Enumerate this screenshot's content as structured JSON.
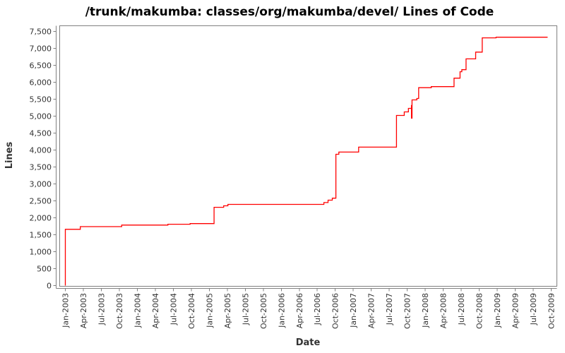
{
  "chart_data": {
    "type": "line",
    "line_style": "step-after",
    "title": "/trunk/makumba: classes/org/makumba/devel/ Lines of Code",
    "xlabel": "Date",
    "ylabel": "Lines",
    "line_color": "#ff0000",
    "frame_color": "#808080",
    "tick_text_color": "#333333",
    "ylim": [
      0,
      7500
    ],
    "y_tick_step": 500,
    "grid": false,
    "legend": false,
    "x_axis_start": "Jan-2003",
    "x_axis_end": "Oct-2009",
    "x_tick_labels": [
      "Jan-2003",
      "Apr-2003",
      "Jul-2003",
      "Oct-2003",
      "Jan-2004",
      "Apr-2004",
      "Jul-2004",
      "Oct-2004",
      "Jan-2005",
      "Apr-2005",
      "Jul-2005",
      "Oct-2005",
      "Jan-2006",
      "Apr-2006",
      "Jul-2006",
      "Oct-2006",
      "Jan-2007",
      "Apr-2007",
      "Jul-2007",
      "Oct-2007",
      "Jan-2008",
      "Apr-2008",
      "Jul-2008",
      "Oct-2008",
      "Jan-2009",
      "Apr-2009",
      "Jul-2009",
      "Oct-2009"
    ],
    "y_tick_labels": [
      "0",
      "500",
      "1,000",
      "1,500",
      "2,000",
      "2,500",
      "3,000",
      "3,500",
      "4,000",
      "4,500",
      "5,000",
      "5,500",
      "6,000",
      "6,500",
      "7,000",
      "7,500"
    ],
    "points_format": [
      "year",
      "month_decimal",
      "lines"
    ],
    "points": [
      [
        2003,
        1.0,
        0
      ],
      [
        2003,
        1.0,
        1660
      ],
      [
        2003,
        3.5,
        1740
      ],
      [
        2003,
        10.4,
        1785
      ],
      [
        2004,
        6.1,
        1810
      ],
      [
        2004,
        9.8,
        1830
      ],
      [
        2005,
        1.8,
        2310
      ],
      [
        2005,
        3.4,
        2355
      ],
      [
        2005,
        4.1,
        2395
      ],
      [
        2006,
        8.1,
        2450
      ],
      [
        2006,
        8.8,
        2520
      ],
      [
        2006,
        9.5,
        2580
      ],
      [
        2006,
        10.1,
        3875
      ],
      [
        2006,
        10.6,
        3940
      ],
      [
        2007,
        1.9,
        4085
      ],
      [
        2007,
        8.2,
        5020
      ],
      [
        2007,
        9.5,
        5125
      ],
      [
        2007,
        10.2,
        5230
      ],
      [
        2007,
        10.7,
        5330
      ],
      [
        2007,
        10.7,
        4940
      ],
      [
        2007,
        10.8,
        5480
      ],
      [
        2007,
        11.6,
        5520
      ],
      [
        2007,
        11.9,
        5840
      ],
      [
        2008,
        2.0,
        5870
      ],
      [
        2008,
        5.8,
        6120
      ],
      [
        2008,
        6.8,
        6310
      ],
      [
        2008,
        7.1,
        6370
      ],
      [
        2008,
        7.8,
        6690
      ],
      [
        2008,
        9.4,
        6890
      ],
      [
        2008,
        10.5,
        7310
      ],
      [
        2008,
        12.8,
        7330
      ],
      [
        2009,
        9.4,
        7330
      ]
    ]
  }
}
